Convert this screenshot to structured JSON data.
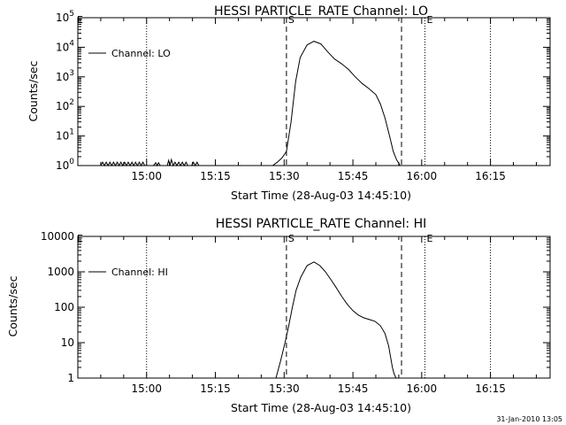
{
  "footer": {
    "timestamp": "31-Jan-2010 13:05"
  },
  "chart_data": [
    {
      "type": "line",
      "title": "HESSI PARTICLE_RATE Channel: LO",
      "xlabel": "Start Time (28-Aug-03 14:45:10)",
      "ylabel": "Counts/sec",
      "x_unit": "minutes after 14:45:10",
      "xlim": [
        0,
        103
      ],
      "ylim": [
        1,
        100000
      ],
      "yscale": "log",
      "x_tick_labels": [
        "15:00",
        "15:15",
        "15:30",
        "15:45",
        "16:00",
        "16:15"
      ],
      "y_tick_labels": [
        "10^0",
        "10^1",
        "10^2",
        "10^3",
        "10^4",
        "10^5"
      ],
      "legend": {
        "position": "top-left",
        "entries": [
          "Channel: LO"
        ]
      },
      "markers": [
        {
          "label": "S",
          "x": 45.5,
          "style": "dashed-label"
        },
        {
          "label": "E",
          "x": 75.7,
          "style": "dotted-label"
        }
      ],
      "vlines": [
        {
          "x": 15.0,
          "style": "dotted"
        },
        {
          "x": 45.5,
          "style": "dashed"
        },
        {
          "x": 70.6,
          "style": "dashed"
        },
        {
          "x": 75.7,
          "style": "dotted"
        },
        {
          "x": 90.0,
          "style": "dotted"
        }
      ],
      "series": [
        {
          "x": [
            5,
            5.4,
            5.8,
            6.2,
            6.6,
            7.0,
            7.4,
            7.8,
            8.2,
            8.6,
            9.0,
            9.4,
            9.8,
            10.2,
            10.6,
            11.0,
            11.4,
            11.8,
            12.2,
            12.6,
            13.0,
            13.4,
            13.8,
            14.2,
            14.6,
            15.0,
            15.5,
            16.5,
            17.0,
            17.3,
            17.6,
            18.0,
            18.5,
            19.5,
            19.8,
            20.1,
            20.4,
            20.8,
            21.2,
            21.6,
            22.0,
            22.4,
            22.8,
            23.2,
            23.6,
            24.0,
            24.4,
            24.8,
            25.2,
            25.6,
            26.0,
            26.4,
            42.5,
            43.5,
            44.5,
            45.5,
            46.5,
            47.5,
            48.5,
            50.0,
            51.5,
            53.0,
            54.5,
            56.0,
            57.5,
            59.0,
            60.5,
            62.0,
            63.5,
            65.0,
            66.0,
            67.0,
            68.0,
            68.8,
            69.5,
            70.0,
            70.3
          ],
          "y": [
            1,
            1.3,
            1,
            1.3,
            1,
            1.3,
            1,
            1.3,
            1,
            1.3,
            1,
            1.3,
            1,
            1.3,
            1,
            1.3,
            1,
            1.3,
            1,
            1.3,
            1,
            1.3,
            1,
            1.3,
            1,
            1,
            1,
            1,
            1.25,
            1,
            1.25,
            1,
            1,
            1,
            1.5,
            1,
            1.6,
            1,
            1.3,
            1,
            1.3,
            1,
            1.3,
            1,
            1.3,
            1,
            1,
            1,
            1.3,
            1,
            1.3,
            1,
            1,
            1.3,
            1.8,
            3,
            30,
            700,
            4500,
            12000,
            16000,
            13000,
            7000,
            4000,
            2800,
            1800,
            1000,
            600,
            400,
            250,
            120,
            40,
            10,
            3,
            1.6,
            1.2,
            1
          ]
        }
      ]
    },
    {
      "type": "line",
      "title": "HESSI PARTICLE_RATE Channel: HI",
      "xlabel": "Start Time (28-Aug-03 14:45:10)",
      "ylabel": "Counts/sec",
      "x_unit": "minutes after 14:45:10",
      "xlim": [
        0,
        103
      ],
      "ylim": [
        1,
        10000
      ],
      "yscale": "log",
      "x_tick_labels": [
        "15:00",
        "15:15",
        "15:30",
        "15:45",
        "16:00",
        "16:15"
      ],
      "y_tick_labels": [
        "1",
        "10",
        "100",
        "1000",
        "10000"
      ],
      "legend": {
        "position": "top-left",
        "entries": [
          "Channel: HI"
        ]
      },
      "markers": [
        {
          "label": "S",
          "x": 45.5,
          "style": "dashed-label"
        },
        {
          "label": "E",
          "x": 75.7,
          "style": "dotted-label"
        }
      ],
      "vlines": [
        {
          "x": 15.0,
          "style": "dotted"
        },
        {
          "x": 45.5,
          "style": "dashed"
        },
        {
          "x": 70.6,
          "style": "dashed"
        },
        {
          "x": 75.7,
          "style": "dotted"
        },
        {
          "x": 90.0,
          "style": "dotted"
        }
      ],
      "series": [
        {
          "x": [
            43.2,
            44.2,
            45.2,
            46.0,
            46.8,
            47.6,
            48.6,
            50.0,
            51.5,
            52.8,
            54.0,
            55.2,
            56.4,
            57.6,
            58.8,
            60.0,
            61.2,
            62.4,
            63.6,
            64.8,
            66.0,
            67.0,
            67.8,
            68.2,
            68.6,
            69.0,
            69.4
          ],
          "y": [
            1,
            3,
            10,
            30,
            100,
            300,
            700,
            1500,
            1900,
            1500,
            1000,
            600,
            350,
            200,
            120,
            80,
            60,
            50,
            45,
            40,
            30,
            18,
            8,
            4,
            2,
            1.3,
            1
          ]
        }
      ]
    }
  ]
}
